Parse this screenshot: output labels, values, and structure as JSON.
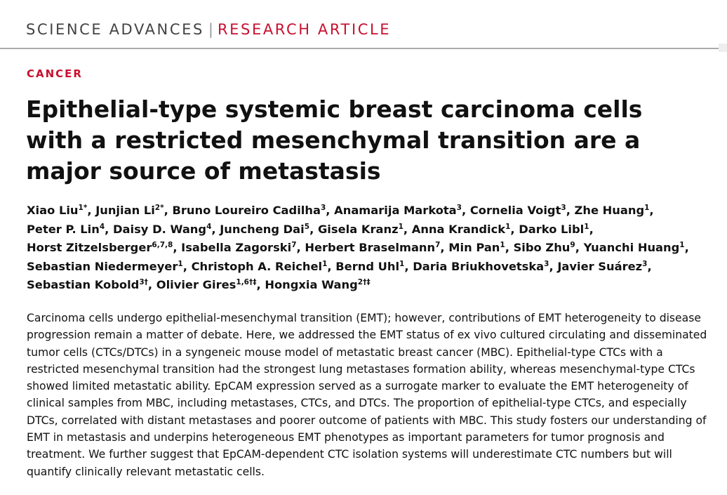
{
  "header": {
    "journal": "SCIENCE ADVANCES",
    "separator": "|",
    "article_type": "RESEARCH ARTICLE"
  },
  "category": "CANCER",
  "title": "Epithelial-type systemic breast carcinoma cells with a restricted mesenchymal transition are a major source of metastasis",
  "authors": [
    {
      "name": "Xiao Liu",
      "sup": "1*"
    },
    {
      "name": "Junjian Li",
      "sup": "2*"
    },
    {
      "name": "Bruno Loureiro Cadilha",
      "sup": "3"
    },
    {
      "name": "Anamarija Markota",
      "sup": "3"
    },
    {
      "name": "Cornelia Voigt",
      "sup": "3"
    },
    {
      "name": "Zhe Huang",
      "sup": "1"
    },
    {
      "name": "Peter P. Lin",
      "sup": "4"
    },
    {
      "name": "Daisy D. Wang",
      "sup": "4"
    },
    {
      "name": "Juncheng Dai",
      "sup": "5"
    },
    {
      "name": "Gisela Kranz",
      "sup": "1"
    },
    {
      "name": "Anna Krandick",
      "sup": "1"
    },
    {
      "name": "Darko Libl",
      "sup": "1"
    },
    {
      "name": "Horst Zitzelsberger",
      "sup": "6,7,8"
    },
    {
      "name": "Isabella Zagorski",
      "sup": "7"
    },
    {
      "name": "Herbert Braselmann",
      "sup": "7"
    },
    {
      "name": "Min Pan",
      "sup": "1"
    },
    {
      "name": "Sibo Zhu",
      "sup": "9"
    },
    {
      "name": "Yuanchi Huang",
      "sup": "1"
    },
    {
      "name": "Sebastian Niedermeyer",
      "sup": "1"
    },
    {
      "name": "Christoph A. Reichel",
      "sup": "1"
    },
    {
      "name": "Bernd Uhl",
      "sup": "1"
    },
    {
      "name": "Daria Briukhovetska",
      "sup": "3"
    },
    {
      "name": "Javier Suárez",
      "sup": "3"
    },
    {
      "name": "Sebastian Kobold",
      "sup": "3†"
    },
    {
      "name": "Olivier Gires",
      "sup": "1,6†‡"
    },
    {
      "name": "Hongxia Wang",
      "sup": "2†‡"
    }
  ],
  "abstract": "Carcinoma cells undergo epithelial-mesenchymal transition (EMT); however, contributions of EMT heterogeneity to disease progression remain a matter of debate. Here, we addressed the EMT status of ex vivo cultured circulating and disseminated tumor cells (CTCs/DTCs) in a syngeneic mouse model of metastatic breast cancer (MBC). Epithelial-type CTCs with a restricted mesenchymal transition had the strongest lung metastases formation ability, whereas mesenchymal-type CTCs showed limited metastatic ability. EpCAM expression served as a surrogate marker to evaluate the EMT heterogeneity of clinical samples from MBC, including metastases, CTCs, and DTCs. The proportion of epithelial-type CTCs, and especially DTCs, correlated with distant metastases and poorer outcome of patients with MBC. This study fosters our understanding of EMT in metastasis and underpins heterogeneous EMT phenotypes as important parameters for tumor prognosis and treatment. We further suggest that EpCAM-dependent CTC isolation systems will underestimate CTC numbers but will quantify clinically relevant metastatic cells.",
  "colors": {
    "accent": "#c8102e",
    "text": "#111111"
  }
}
